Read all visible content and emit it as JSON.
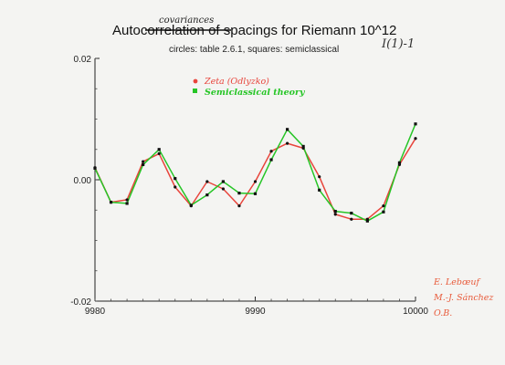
{
  "chart_data": {
    "type": "line",
    "title": {
      "prefix": "Auto",
      "struck": "correlation",
      "inserted": "covariances",
      "rest": " of spacings for Riemann 10^12"
    },
    "subtitle": "circles: table 2.6.1,  squares: semiclassical",
    "corner_note": "I(1)-1",
    "xlabel": "",
    "ylabel": "",
    "xlim": [
      9980,
      10000
    ],
    "ylim": [
      -0.02,
      0.02
    ],
    "xticks": [
      {
        "value": 9980,
        "label": "9980"
      },
      {
        "value": 9990,
        "label": "9990"
      },
      {
        "value": 10000,
        "label": "10000"
      }
    ],
    "yticks": [
      {
        "value": 0.02,
        "label": "0.02"
      },
      {
        "value": 0.0,
        "label": "0.00"
      },
      {
        "value": -0.02,
        "label": "-0.02"
      }
    ],
    "grid": false,
    "legend_position": "top-center",
    "x": [
      9980,
      9981,
      9982,
      9983,
      9984,
      9985,
      9986,
      9987,
      9988,
      9989,
      9990,
      9991,
      9992,
      9993,
      9994,
      9995,
      9996,
      9997,
      9998,
      9999,
      10000
    ],
    "series": [
      {
        "name": "Zeta (Odlyzko)",
        "marker": "circle",
        "color": "#e8453c",
        "values": [
          0.002,
          -0.0037,
          -0.0033,
          0.003,
          0.0043,
          -0.0012,
          -0.0043,
          -0.0003,
          -0.0015,
          -0.0043,
          -0.0003,
          0.0047,
          0.006,
          0.0052,
          0.0005,
          -0.0057,
          -0.0065,
          -0.0065,
          -0.0043,
          0.0025,
          0.0068
        ]
      },
      {
        "name": "Semiclassical theory",
        "marker": "square",
        "color": "#26c526",
        "values": [
          0.0019,
          -0.0037,
          -0.0039,
          0.0025,
          0.005,
          0.0002,
          -0.0042,
          -0.0025,
          -0.0003,
          -0.0022,
          -0.0023,
          0.0033,
          0.0083,
          0.0055,
          -0.0017,
          -0.0052,
          -0.0055,
          -0.0068,
          -0.0053,
          0.0028,
          0.0092
        ]
      }
    ],
    "signature": [
      "E. Lebœuf",
      "M.-J. Sánchez",
      "O.B."
    ],
    "colors": {
      "axis": "#222222",
      "series_dot": "#111111",
      "handwriting_red": "#e8453c",
      "handwriting_green": "#26c526",
      "signature": "#e85a3a",
      "pencil": "#333333"
    }
  }
}
